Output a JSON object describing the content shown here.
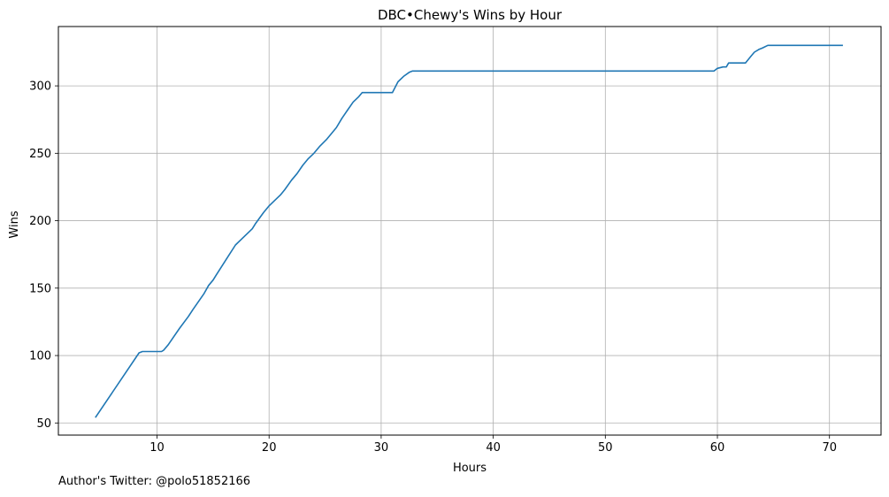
{
  "chart_data": {
    "type": "line",
    "title": "DBC•Chewy's Wins by Hour",
    "xlabel": "Hours",
    "ylabel": "Wins",
    "xlim": [
      1.2,
      74.6
    ],
    "ylim": [
      41,
      344
    ],
    "xticks": [
      10,
      20,
      30,
      40,
      50,
      60,
      70
    ],
    "yticks": [
      50,
      100,
      150,
      200,
      250,
      300
    ],
    "grid": true,
    "series": [
      {
        "color": "#1f77b4",
        "x": [
          4.5,
          8.4,
          8.7,
          10.4,
          10.6,
          11.0,
          12.0,
          12.8,
          13.2,
          14.2,
          14.6,
          15.0,
          15.3,
          16.0,
          17.0,
          17.5,
          18.5,
          18.8,
          19.5,
          20.0,
          20.5,
          21.0,
          21.4,
          22.0,
          22.5,
          23.0,
          23.5,
          24.0,
          24.5,
          25.1,
          25.5,
          26.0,
          26.5,
          27.0,
          27.5,
          28.0,
          28.3,
          30.2,
          31.0,
          31.5,
          32.0,
          32.5,
          32.8,
          59.7,
          60.0,
          60.5,
          60.8,
          61.0,
          62.5,
          63.0,
          63.3,
          63.7,
          64.0,
          64.5,
          71.2
        ],
        "y": [
          54,
          102,
          103,
          103,
          104,
          108,
          120,
          129,
          134,
          146,
          152,
          156,
          160,
          169,
          182,
          186,
          194,
          198,
          206,
          211,
          215,
          219,
          223,
          230,
          235,
          241,
          246,
          250,
          255,
          260,
          264,
          269,
          276,
          282,
          288,
          292,
          295,
          295,
          295,
          303,
          307,
          310,
          311,
          311,
          313,
          314,
          314,
          317,
          317,
          322,
          325,
          327,
          328,
          330,
          330
        ]
      }
    ]
  },
  "footer": {
    "text": "Author's Twitter: @polo51852166"
  }
}
